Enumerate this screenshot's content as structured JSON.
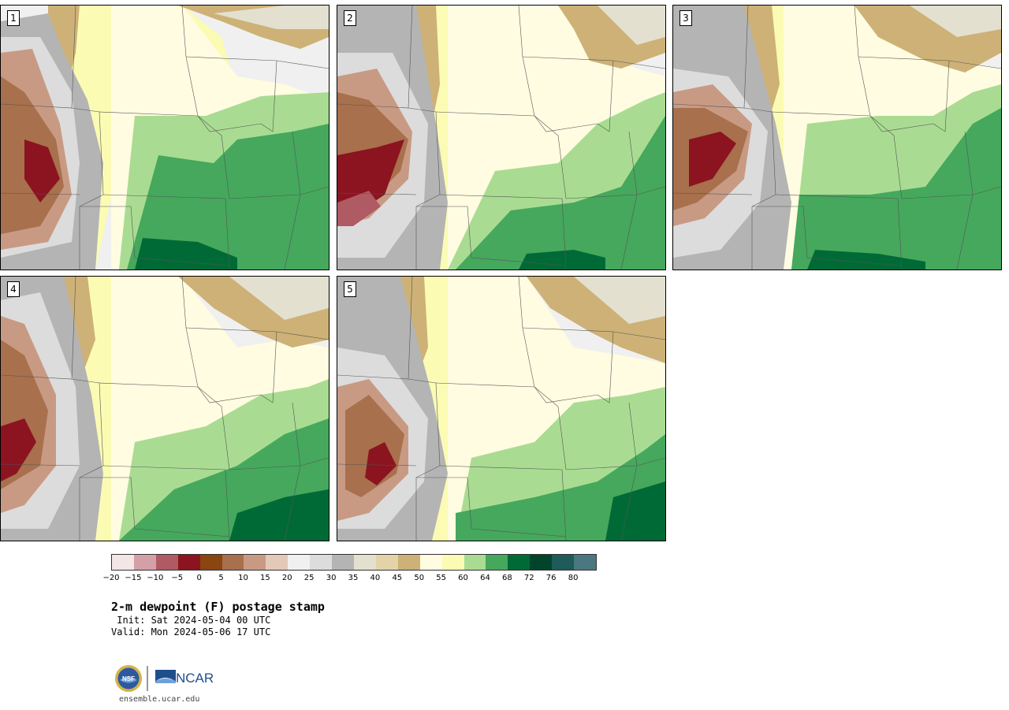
{
  "panels": [
    {
      "number": "1"
    },
    {
      "number": "2"
    },
    {
      "number": "3"
    },
    {
      "number": "4"
    },
    {
      "number": "5"
    }
  ],
  "legend": {
    "colors": [
      "#f3e6e7",
      "#d3a0a7",
      "#b05a63",
      "#8b1420",
      "#8a4511",
      "#a8704c",
      "#c89a84",
      "#e4c8b8",
      "#f0f0f0",
      "#dcdcdc",
      "#b4b4b4",
      "#e3e0d0",
      "#e4d3a8",
      "#cdb176",
      "#fffce1",
      "#fbfbb4",
      "#a9dc92",
      "#45a85d",
      "#006a36",
      "#00452b",
      "#1e5b59",
      "#4b7880"
    ],
    "ticks": [
      "−20",
      "−15",
      "−10",
      "−5",
      "0",
      "5",
      "10",
      "15",
      "20",
      "25",
      "30",
      "35",
      "40",
      "45",
      "50",
      "55",
      "60",
      "64",
      "68",
      "72",
      "76",
      "80"
    ]
  },
  "title": "2-m dewpoint (F) postage stamp",
  "init": " Init: Sat 2024-05-04 00 UTC",
  "valid": "Valid: Mon 2024-05-06 17 UTC",
  "logos": {
    "nsf": "NSF",
    "ncar": "NCAR"
  },
  "url": "ensemble.ucar.edu"
}
